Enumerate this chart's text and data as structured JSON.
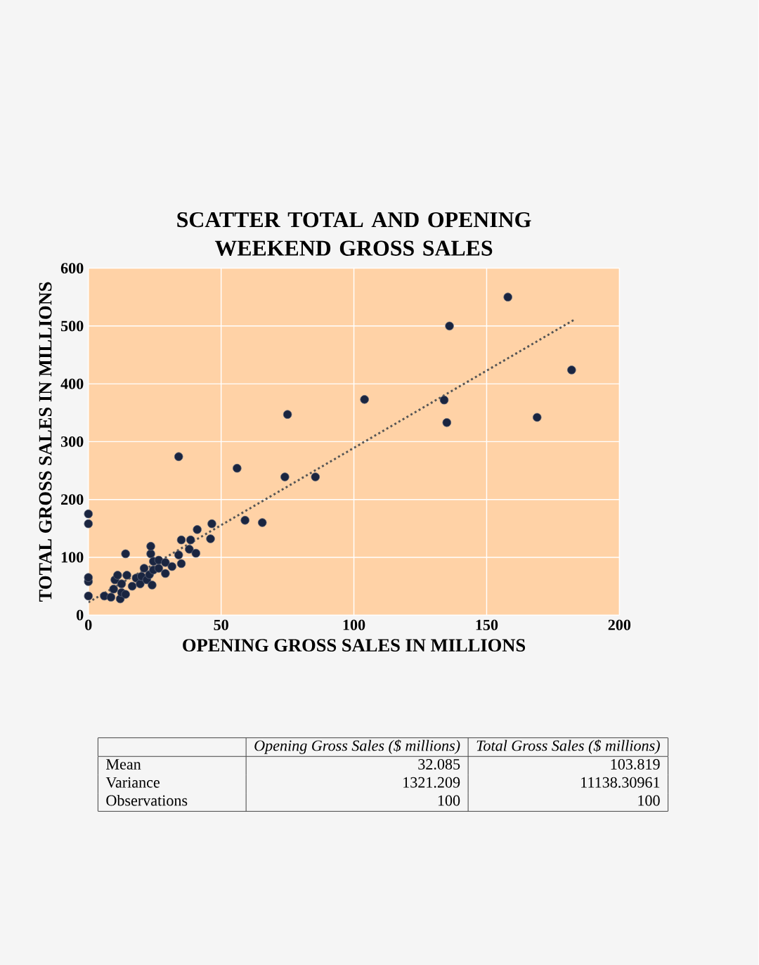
{
  "chart_data": {
    "type": "scatter",
    "title": "SCATTER TOTAL AND OPENING WEEKEND GROSS SALES",
    "xlabel": "OPENING GROSS SALES IN MILLIONS",
    "ylabel": "TOTAL GROSS SALES IN MILLIONS",
    "xlim": [
      0,
      200
    ],
    "ylim": [
      0,
      600
    ],
    "xticks": [
      0,
      50,
      100,
      150,
      200
    ],
    "yticks": [
      0,
      100,
      200,
      300,
      400,
      500,
      600
    ],
    "grid": true,
    "series": [
      {
        "type": "scatter",
        "marker": "circle",
        "color": "#1a2540",
        "x": [
          0,
          0,
          0,
          0,
          0,
          6,
          8.5,
          9.5,
          10,
          11,
          12,
          12.5,
          12.5,
          14,
          14.5,
          14,
          16.5,
          18,
          19.5,
          20,
          21,
          22,
          23,
          24,
          23.5,
          23.5,
          24.5,
          24.5,
          26.5,
          26.5,
          29,
          29,
          31.5,
          35,
          34,
          35,
          38,
          38.5,
          40.5,
          41,
          46,
          46.5,
          34,
          56,
          59,
          65.5,
          74,
          75,
          85.5,
          104,
          134,
          135,
          136,
          158,
          169,
          182
        ],
        "values": [
          33,
          58,
          65,
          158,
          175,
          33,
          31,
          45,
          61,
          69,
          28,
          39,
          54,
          36,
          69,
          106,
          50,
          64,
          54,
          67,
          81,
          61,
          70,
          52,
          106,
          119,
          78,
          93,
          81,
          95,
          72,
          91,
          84,
          89,
          104,
          130,
          114,
          130,
          107,
          148,
          132,
          158,
          274,
          254,
          164,
          160,
          239,
          347,
          239,
          373,
          372,
          333,
          500,
          550,
          342,
          424
        ]
      },
      {
        "type": "line",
        "color": "#555555",
        "line_style": "dotted",
        "x": [
          0,
          183
        ],
        "values": [
          22,
          511
        ]
      }
    ],
    "annotations": [
      "Opening Gross Sales ($ millions)",
      "Total Gross Sales ($ millions)",
      "Mean",
      "32.085",
      "103.819",
      "Variance",
      "1321.209",
      "11138.30961",
      "Observations",
      "100",
      "100"
    ]
  }
}
